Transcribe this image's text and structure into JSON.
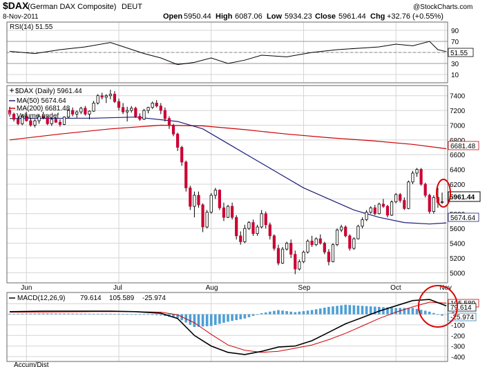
{
  "header": {
    "symbol": "$DAX",
    "name": "(German DAX Composite)",
    "exchange": "DEUT",
    "date": "8-Nov-2011",
    "watermark": "@StockCharts.com",
    "open_label": "Open",
    "open": "5950.44",
    "high_label": "High",
    "high": "6087.06",
    "low_label": "Low",
    "low": "5934.23",
    "close_label": "Close",
    "close": "5961.44",
    "chg_label": "Chg",
    "chg": "+32.76 (+0.55%)"
  },
  "colors": {
    "up": "#ffffff",
    "down": "#cc0033",
    "ma50": "#1a1a7a",
    "ma200": "#cc0000",
    "macd_line": "#000000",
    "signal_line": "#cc0000",
    "histogram": "#4d9fd6",
    "rsi_fill": "#8b6b62",
    "highlight": "#dd0000"
  },
  "rsi_panel": {
    "label": "RSI(14) 51.55",
    "value_tag": "51.55",
    "ticks": [
      "90",
      "70",
      "50",
      "30",
      "10"
    ]
  },
  "price_panel": {
    "legend_main": "$DAX (Daily) 5961.44",
    "legend_ma50": "MA(50) 5674.64",
    "legend_ma200": "MA(200) 6681.48",
    "legend_volume": "Volume undef",
    "tag_close": "5961.44",
    "tag_ma50": "5674.64",
    "tag_ma200": "6681.48",
    "ticks": [
      "7400",
      "7200",
      "7000",
      "6800",
      "6600",
      "6400",
      "6200",
      "6000",
      "5800",
      "5600",
      "5400",
      "5200",
      "5000"
    ]
  },
  "months": [
    "Jun",
    "Jul",
    "Aug",
    "Sep",
    "Oct",
    "Nov"
  ],
  "macd_panel": {
    "label_prefix": "MACD(12,26,9)",
    "macd": "79.614",
    "signal": "105.589",
    "hist": "-25.974",
    "tag_macd": "79.614",
    "tag_signal": "105.589",
    "tag_hist": "-25.974",
    "ticks": [
      "100",
      "0",
      "-100",
      "-200",
      "-300",
      "-400"
    ]
  },
  "bottom_label": "Accum/Dist",
  "chart_data": {
    "type": "candlestick",
    "title": "$DAX (German DAX Composite) DEUT",
    "ylim": [
      4900,
      7500
    ],
    "ohlc": [
      [
        7200,
        7250,
        7120,
        7150
      ],
      [
        7150,
        7170,
        7050,
        7080
      ],
      [
        7080,
        7120,
        7000,
        7020
      ],
      [
        7020,
        7150,
        7000,
        7120
      ],
      [
        7120,
        7180,
        7050,
        7060
      ],
      [
        7060,
        7100,
        6980,
        7000
      ],
      [
        7000,
        7080,
        6970,
        7060
      ],
      [
        7060,
        7150,
        7020,
        7120
      ],
      [
        7120,
        7180,
        7080,
        7100
      ],
      [
        7100,
        7130,
        7000,
        7020
      ],
      [
        7020,
        7100,
        6990,
        7080
      ],
      [
        7080,
        7120,
        7030,
        7040
      ],
      [
        7040,
        7080,
        6980,
        7010
      ],
      [
        7010,
        7120,
        7000,
        7110
      ],
      [
        7110,
        7220,
        7090,
        7200
      ],
      [
        7200,
        7240,
        7120,
        7150
      ],
      [
        7150,
        7200,
        7100,
        7180
      ],
      [
        7180,
        7250,
        7150,
        7230
      ],
      [
        7230,
        7260,
        7130,
        7150
      ],
      [
        7150,
        7200,
        7080,
        7190
      ],
      [
        7190,
        7330,
        7180,
        7300
      ],
      [
        7300,
        7420,
        7280,
        7400
      ],
      [
        7400,
        7440,
        7350,
        7380
      ],
      [
        7380,
        7420,
        7300,
        7400
      ],
      [
        7400,
        7480,
        7350,
        7420
      ],
      [
        7420,
        7460,
        7300,
        7320
      ],
      [
        7320,
        7360,
        7200,
        7240
      ],
      [
        7240,
        7300,
        7150,
        7180
      ],
      [
        7180,
        7250,
        7050,
        7200
      ],
      [
        7200,
        7260,
        7170,
        7230
      ],
      [
        7230,
        7250,
        7100,
        7120
      ],
      [
        7120,
        7160,
        7060,
        7080
      ],
      [
        7080,
        7220,
        7070,
        7200
      ],
      [
        7200,
        7250,
        7160,
        7240
      ],
      [
        7240,
        7320,
        7220,
        7300
      ],
      [
        7300,
        7340,
        7240,
        7260
      ],
      [
        7260,
        7300,
        7150,
        7200
      ],
      [
        7200,
        7240,
        7050,
        7090
      ],
      [
        7090,
        7120,
        6950,
        7000
      ],
      [
        7000,
        7020,
        6850,
        6880
      ],
      [
        6880,
        6900,
        6650,
        6700
      ],
      [
        6700,
        6720,
        6450,
        6500
      ],
      [
        6500,
        6520,
        6100,
        6150
      ],
      [
        6150,
        6180,
        5850,
        5900
      ],
      [
        5900,
        6100,
        5750,
        6050
      ],
      [
        6050,
        6100,
        5880,
        5920
      ],
      [
        5920,
        5940,
        5550,
        5620
      ],
      [
        5620,
        5850,
        5600,
        5820
      ],
      [
        5820,
        6080,
        5800,
        6050
      ],
      [
        6050,
        6150,
        6000,
        6120
      ],
      [
        6120,
        6130,
        5850,
        5880
      ],
      [
        5880,
        5950,
        5700,
        5750
      ],
      [
        5750,
        5920,
        5740,
        5900
      ],
      [
        5900,
        5950,
        5720,
        5750
      ],
      [
        5750,
        5780,
        5450,
        5500
      ],
      [
        5500,
        5560,
        5380,
        5420
      ],
      [
        5420,
        5650,
        5400,
        5600
      ],
      [
        5600,
        5700,
        5580,
        5680
      ],
      [
        5680,
        5720,
        5500,
        5530
      ],
      [
        5530,
        5650,
        5500,
        5620
      ],
      [
        5620,
        5850,
        5600,
        5800
      ],
      [
        5800,
        5830,
        5600,
        5650
      ],
      [
        5650,
        5680,
        5450,
        5500
      ],
      [
        5500,
        5520,
        5300,
        5330
      ],
      [
        5330,
        5380,
        5100,
        5130
      ],
      [
        5130,
        5350,
        5120,
        5320
      ],
      [
        5320,
        5420,
        5300,
        5400
      ],
      [
        5400,
        5450,
        5200,
        5250
      ],
      [
        5250,
        5300,
        4980,
        5050
      ],
      [
        5050,
        5180,
        5030,
        5150
      ],
      [
        5150,
        5300,
        5130,
        5280
      ],
      [
        5280,
        5450,
        5260,
        5430
      ],
      [
        5430,
        5500,
        5350,
        5380
      ],
      [
        5380,
        5480,
        5360,
        5460
      ],
      [
        5460,
        5520,
        5380,
        5400
      ],
      [
        5400,
        5420,
        5250,
        5280
      ],
      [
        5280,
        5320,
        5100,
        5150
      ],
      [
        5150,
        5400,
        5140,
        5380
      ],
      [
        5380,
        5600,
        5360,
        5580
      ],
      [
        5580,
        5650,
        5550,
        5620
      ],
      [
        5620,
        5640,
        5480,
        5500
      ],
      [
        5500,
        5520,
        5300,
        5330
      ],
      [
        5330,
        5480,
        5310,
        5460
      ],
      [
        5460,
        5650,
        5450,
        5630
      ],
      [
        5630,
        5750,
        5600,
        5720
      ],
      [
        5720,
        5850,
        5700,
        5820
      ],
      [
        5820,
        5900,
        5800,
        5880
      ],
      [
        5880,
        5920,
        5780,
        5800
      ],
      [
        5800,
        5950,
        5790,
        5930
      ],
      [
        5930,
        6000,
        5880,
        5900
      ],
      [
        5900,
        5920,
        5750,
        5780
      ],
      [
        5780,
        5980,
        5770,
        5960
      ],
      [
        5960,
        6080,
        5940,
        6060
      ],
      [
        6060,
        6080,
        5950,
        5980
      ],
      [
        5980,
        6020,
        5850,
        5870
      ],
      [
        5870,
        6250,
        5860,
        6230
      ],
      [
        6230,
        6380,
        6200,
        6350
      ],
      [
        6350,
        6420,
        6300,
        6400
      ],
      [
        6400,
        6420,
        6180,
        6200
      ],
      [
        6200,
        6220,
        6020,
        6050
      ],
      [
        6050,
        6070,
        5800,
        5830
      ],
      [
        5830,
        6050,
        5800,
        6020
      ],
      [
        6020,
        6150,
        5880,
        5950
      ],
      [
        5950,
        6087,
        5934,
        5961
      ]
    ],
    "ma50": [
      [
        0,
        7090
      ],
      [
        20,
        7095
      ],
      [
        30,
        7110
      ],
      [
        40,
        7050
      ],
      [
        46,
        6950
      ],
      [
        52,
        6750
      ],
      [
        58,
        6550
      ],
      [
        64,
        6350
      ],
      [
        70,
        6150
      ],
      [
        76,
        6000
      ],
      [
        82,
        5850
      ],
      [
        88,
        5750
      ],
      [
        94,
        5680
      ],
      [
        100,
        5660
      ],
      [
        104,
        5675
      ]
    ],
    "ma200": [
      [
        0,
        6800
      ],
      [
        12,
        6880
      ],
      [
        24,
        6950
      ],
      [
        36,
        7000
      ],
      [
        46,
        6990
      ],
      [
        56,
        6940
      ],
      [
        66,
        6880
      ],
      [
        76,
        6830
      ],
      [
        86,
        6790
      ],
      [
        96,
        6740
      ],
      [
        104,
        6681
      ]
    ],
    "rsi": [
      [
        0,
        52
      ],
      [
        6,
        48
      ],
      [
        12,
        55
      ],
      [
        18,
        60
      ],
      [
        24,
        68
      ],
      [
        28,
        58
      ],
      [
        32,
        48
      ],
      [
        36,
        40
      ],
      [
        40,
        28
      ],
      [
        44,
        32
      ],
      [
        48,
        40
      ],
      [
        52,
        30
      ],
      [
        56,
        36
      ],
      [
        60,
        45
      ],
      [
        66,
        42
      ],
      [
        72,
        50
      ],
      [
        78,
        55
      ],
      [
        84,
        58
      ],
      [
        88,
        60
      ],
      [
        92,
        65
      ],
      [
        96,
        62
      ],
      [
        100,
        70
      ],
      [
        102,
        55
      ],
      [
        104,
        51.55
      ]
    ],
    "macd": [
      [
        0,
        25
      ],
      [
        8,
        30
      ],
      [
        16,
        30
      ],
      [
        24,
        30
      ],
      [
        30,
        25
      ],
      [
        36,
        10
      ],
      [
        40,
        -40
      ],
      [
        44,
        -200
      ],
      [
        48,
        -300
      ],
      [
        52,
        -360
      ],
      [
        56,
        -380
      ],
      [
        60,
        -350
      ],
      [
        64,
        -310
      ],
      [
        68,
        -300
      ],
      [
        72,
        -250
      ],
      [
        76,
        -170
      ],
      [
        80,
        -90
      ],
      [
        84,
        -30
      ],
      [
        88,
        30
      ],
      [
        92,
        80
      ],
      [
        96,
        130
      ],
      [
        100,
        140
      ],
      [
        104,
        79.614
      ]
    ],
    "signal": [
      [
        0,
        20
      ],
      [
        10,
        22
      ],
      [
        20,
        25
      ],
      [
        30,
        25
      ],
      [
        36,
        20
      ],
      [
        40,
        -5
      ],
      [
        44,
        -80
      ],
      [
        48,
        -190
      ],
      [
        52,
        -290
      ],
      [
        56,
        -340
      ],
      [
        60,
        -360
      ],
      [
        64,
        -350
      ],
      [
        68,
        -320
      ],
      [
        72,
        -290
      ],
      [
        76,
        -240
      ],
      [
        80,
        -180
      ],
      [
        84,
        -110
      ],
      [
        88,
        -40
      ],
      [
        92,
        20
      ],
      [
        96,
        70
      ],
      [
        100,
        115
      ],
      [
        104,
        105.589
      ]
    ],
    "months": [
      "Jun",
      "Jul",
      "Aug",
      "Sep",
      "Oct",
      "Nov"
    ]
  }
}
